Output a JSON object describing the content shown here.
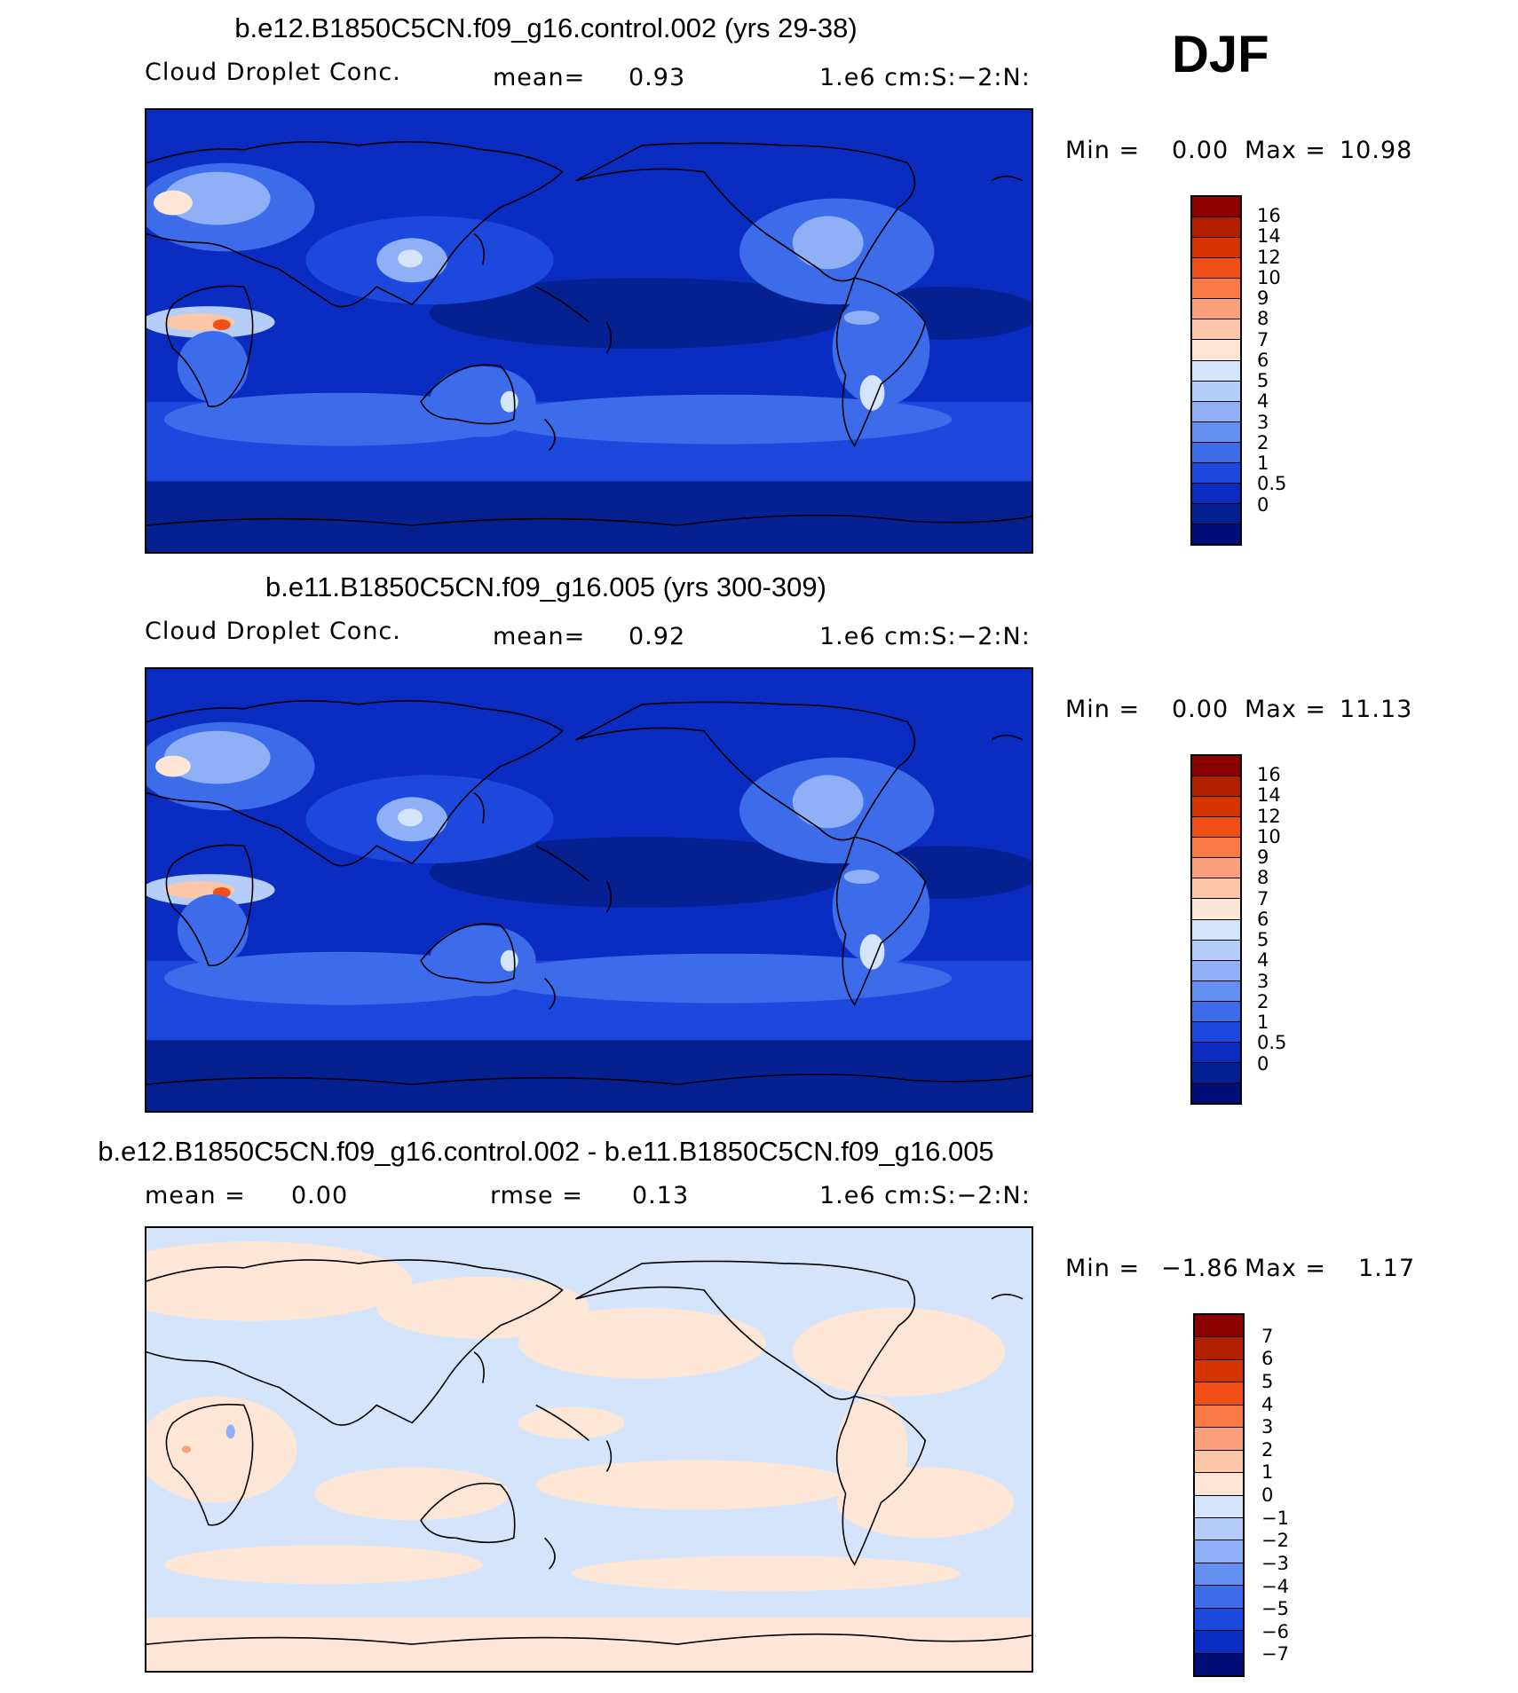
{
  "season": "DJF",
  "panels": [
    {
      "title": "b.e12.B1850C5CN.f09_g16.control.002 (yrs 29-38)",
      "variable": "Cloud Droplet Conc.",
      "stat_label": "mean=",
      "stat_value": "0.93",
      "units": "1.e6 cm:S:−2:N:",
      "min_label": "Min =",
      "min_value": "0.00",
      "max_label": "Max =",
      "max_value": "10.98",
      "colorbar_labels": [
        "16",
        "14",
        "12",
        "10",
        "9",
        "8",
        "7",
        "6",
        "5",
        "4",
        "3",
        "2",
        "1",
        "0.5",
        "0"
      ],
      "colorbar_colors": [
        "#8b0000",
        "#b22000",
        "#d73500",
        "#f04e16",
        "#f97a45",
        "#fba07a",
        "#fcc6a8",
        "#fde6d6",
        "#d4e4fb",
        "#b4cdf9",
        "#8fb0f6",
        "#6390f0",
        "#3d6cea",
        "#1c48de",
        "#0a2cc0",
        "#052090",
        "#020e78"
      ]
    },
    {
      "title": "b.e11.B1850C5CN.f09_g16.005 (yrs 300-309)",
      "variable": "Cloud Droplet Conc.",
      "stat_label": "mean=",
      "stat_value": "0.92",
      "units": "1.e6 cm:S:−2:N:",
      "min_label": "Min =",
      "min_value": "0.00",
      "max_label": "Max =",
      "max_value": "11.13",
      "colorbar_labels": [
        "16",
        "14",
        "12",
        "10",
        "9",
        "8",
        "7",
        "6",
        "5",
        "4",
        "3",
        "2",
        "1",
        "0.5",
        "0"
      ],
      "colorbar_colors": [
        "#8b0000",
        "#b22000",
        "#d73500",
        "#f04e16",
        "#f97a45",
        "#fba07a",
        "#fcc6a8",
        "#fde6d6",
        "#d4e4fb",
        "#b4cdf9",
        "#8fb0f6",
        "#6390f0",
        "#3d6cea",
        "#1c48de",
        "#0a2cc0",
        "#052090",
        "#020e78"
      ]
    },
    {
      "title": "b.e12.B1850C5CN.f09_g16.control.002 - b.e11.B1850C5CN.f09_g16.005",
      "stat_label": "mean =",
      "stat_value": "0.00",
      "stat2_label": "rmse =",
      "stat2_value": "0.13",
      "units": "1.e6 cm:S:−2:N:",
      "min_label": "Min =",
      "min_value": "−1.86",
      "max_label": "Max =",
      "max_value": "1.17",
      "colorbar_labels": [
        "7",
        "6",
        "5",
        "4",
        "3",
        "2",
        "1",
        "0",
        "−1",
        "−2",
        "−3",
        "−4",
        "−5",
        "−6",
        "−7"
      ],
      "colorbar_colors": [
        "#8b0000",
        "#b22000",
        "#d73500",
        "#f04e16",
        "#f97a45",
        "#fba07a",
        "#fcc6a8",
        "#fde6d6",
        "#d4e4fb",
        "#b4cdf9",
        "#8fb0f6",
        "#6390f0",
        "#3d6cea",
        "#1c48de",
        "#0a2cc0",
        "#020e78"
      ]
    }
  ]
}
